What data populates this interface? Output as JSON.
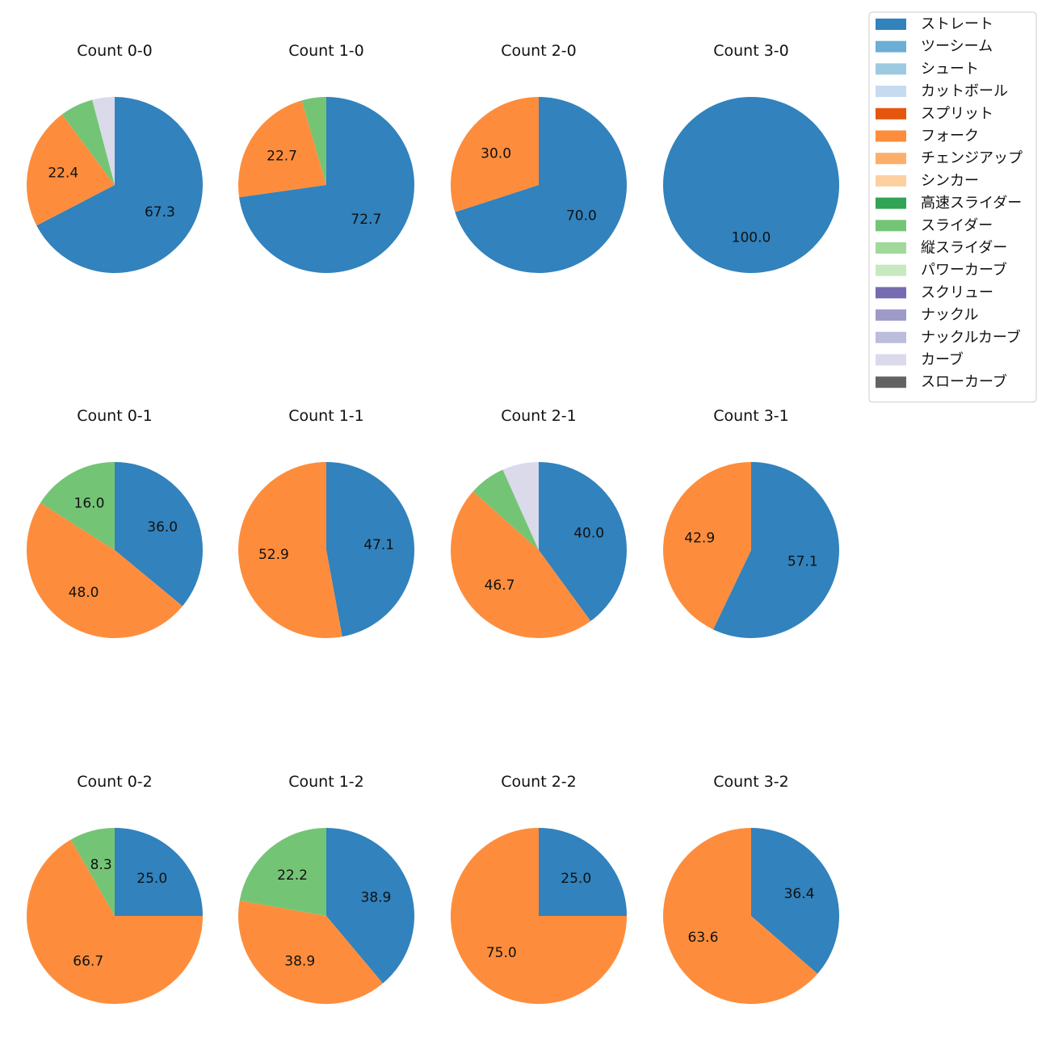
{
  "chart_data": {
    "type": "pie",
    "start_angle": "12 o'clock, clockwise",
    "legend": {
      "position": "top-right",
      "entries": [
        {
          "name": "ストレート",
          "color": "#3182bd"
        },
        {
          "name": "ツーシーム",
          "color": "#6baed6"
        },
        {
          "name": "シュート",
          "color": "#9ecae1"
        },
        {
          "name": "カットボール",
          "color": "#c6dbef"
        },
        {
          "name": "スプリット",
          "color": "#e6550d"
        },
        {
          "name": "フォーク",
          "color": "#fd8d3c"
        },
        {
          "name": "チェンジアップ",
          "color": "#fdae6b"
        },
        {
          "name": "シンカー",
          "color": "#fdd0a2"
        },
        {
          "name": "高速スライダー",
          "color": "#31a354"
        },
        {
          "name": "スライダー",
          "color": "#74c476"
        },
        {
          "name": "縦スライダー",
          "color": "#a1d99b"
        },
        {
          "name": "パワーカーブ",
          "color": "#c7e9c0"
        },
        {
          "name": "スクリュー",
          "color": "#756bb1"
        },
        {
          "name": "ナックル",
          "color": "#9e9ac8"
        },
        {
          "name": "ナックルカーブ",
          "color": "#bcbddc"
        },
        {
          "name": "カーブ",
          "color": "#dadaeb"
        },
        {
          "name": "スローカーブ",
          "color": "#636363"
        }
      ]
    },
    "pies": [
      {
        "title": "Count 0-0",
        "slices": [
          {
            "pitch": "ストレート",
            "value": 67.3,
            "label": "67.3"
          },
          {
            "pitch": "フォーク",
            "value": 22.4,
            "label": "22.4"
          },
          {
            "pitch": "スライダー",
            "value": 6.1,
            "label": ""
          },
          {
            "pitch": "カーブ",
            "value": 4.1,
            "label": ""
          }
        ]
      },
      {
        "title": "Count 1-0",
        "slices": [
          {
            "pitch": "ストレート",
            "value": 72.7,
            "label": "72.7"
          },
          {
            "pitch": "フォーク",
            "value": 22.7,
            "label": "22.7"
          },
          {
            "pitch": "スライダー",
            "value": 4.5,
            "label": ""
          }
        ]
      },
      {
        "title": "Count 2-0",
        "slices": [
          {
            "pitch": "ストレート",
            "value": 70.0,
            "label": "70.0"
          },
          {
            "pitch": "フォーク",
            "value": 30.0,
            "label": "30.0"
          }
        ]
      },
      {
        "title": "Count 3-0",
        "slices": [
          {
            "pitch": "ストレート",
            "value": 100.0,
            "label": "100.0"
          }
        ]
      },
      {
        "title": "Count 0-1",
        "slices": [
          {
            "pitch": "ストレート",
            "value": 36.0,
            "label": "36.0"
          },
          {
            "pitch": "フォーク",
            "value": 48.0,
            "label": "48.0"
          },
          {
            "pitch": "スライダー",
            "value": 16.0,
            "label": "16.0"
          }
        ]
      },
      {
        "title": "Count 1-1",
        "slices": [
          {
            "pitch": "ストレート",
            "value": 47.1,
            "label": "47.1"
          },
          {
            "pitch": "フォーク",
            "value": 52.9,
            "label": "52.9"
          }
        ]
      },
      {
        "title": "Count 2-1",
        "slices": [
          {
            "pitch": "ストレート",
            "value": 40.0,
            "label": "40.0"
          },
          {
            "pitch": "フォーク",
            "value": 46.7,
            "label": "46.7"
          },
          {
            "pitch": "スライダー",
            "value": 6.7,
            "label": ""
          },
          {
            "pitch": "カーブ",
            "value": 6.7,
            "label": ""
          }
        ]
      },
      {
        "title": "Count 3-1",
        "slices": [
          {
            "pitch": "ストレート",
            "value": 57.1,
            "label": "57.1"
          },
          {
            "pitch": "フォーク",
            "value": 42.9,
            "label": "42.9"
          }
        ]
      },
      {
        "title": "Count 0-2",
        "slices": [
          {
            "pitch": "ストレート",
            "value": 25.0,
            "label": "25.0"
          },
          {
            "pitch": "フォーク",
            "value": 66.7,
            "label": "66.7"
          },
          {
            "pitch": "スライダー",
            "value": 8.3,
            "label": "8.3"
          }
        ]
      },
      {
        "title": "Count 1-2",
        "slices": [
          {
            "pitch": "ストレート",
            "value": 38.9,
            "label": "38.9"
          },
          {
            "pitch": "フォーク",
            "value": 38.9,
            "label": "38.9"
          },
          {
            "pitch": "スライダー",
            "value": 22.2,
            "label": "22.2"
          }
        ]
      },
      {
        "title": "Count 2-2",
        "slices": [
          {
            "pitch": "ストレート",
            "value": 25.0,
            "label": "25.0"
          },
          {
            "pitch": "フォーク",
            "value": 75.0,
            "label": "75.0"
          }
        ]
      },
      {
        "title": "Count 3-2",
        "slices": [
          {
            "pitch": "ストレート",
            "value": 36.4,
            "label": "36.4"
          },
          {
            "pitch": "フォーク",
            "value": 63.6,
            "label": "63.6"
          }
        ]
      }
    ]
  }
}
